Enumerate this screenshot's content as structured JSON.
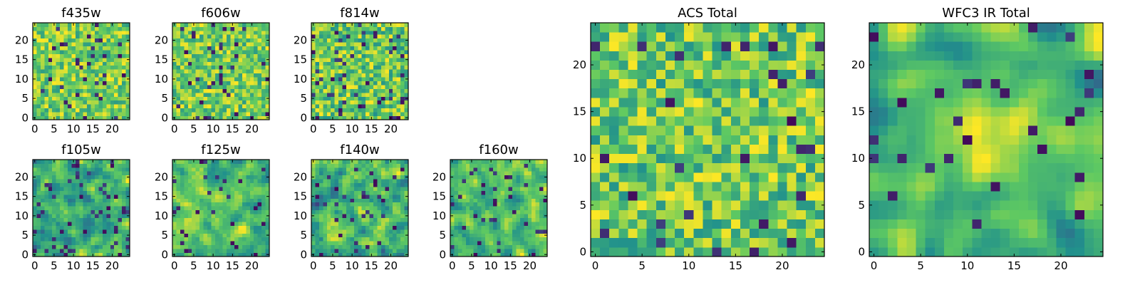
{
  "figure": {
    "background": "#ffffff"
  },
  "colormap": {
    "name": "viridis-upper",
    "stops": [
      "#440154",
      "#3b528b",
      "#21918c",
      "#5ec962",
      "#fde725"
    ]
  },
  "chart_data": [
    {
      "type": "heatmap",
      "title": "f435w",
      "grid": [
        25,
        25
      ],
      "xlim": [
        -0.5,
        24.5
      ],
      "ylim": [
        -0.5,
        24.5
      ],
      "xticks": [
        0,
        5,
        10,
        15,
        20
      ],
      "yticks": [
        0,
        5,
        10,
        15,
        20
      ],
      "xlabel": "",
      "ylabel": "",
      "texture": "noise",
      "seed": 11,
      "value_range": [
        0.55,
        1.0
      ],
      "dark_fraction": 0.05,
      "smoothing": 0
    },
    {
      "type": "heatmap",
      "title": "f606w",
      "grid": [
        25,
        25
      ],
      "xlim": [
        -0.5,
        24.5
      ],
      "ylim": [
        -0.5,
        24.5
      ],
      "xticks": [
        0,
        5,
        10,
        15,
        20
      ],
      "yticks": [
        0,
        5,
        10,
        15,
        20
      ],
      "xlabel": "",
      "ylabel": "",
      "texture": "noise",
      "seed": 23,
      "value_range": [
        0.55,
        1.0
      ],
      "dark_fraction": 0.05,
      "smoothing": 0
    },
    {
      "type": "heatmap",
      "title": "f814w",
      "grid": [
        25,
        25
      ],
      "xlim": [
        -0.5,
        24.5
      ],
      "ylim": [
        -0.5,
        24.5
      ],
      "xticks": [
        0,
        5,
        10,
        15,
        20
      ],
      "yticks": [
        0,
        5,
        10,
        15,
        20
      ],
      "xlabel": "",
      "ylabel": "",
      "texture": "noise",
      "seed": 37,
      "value_range": [
        0.5,
        1.0
      ],
      "dark_fraction": 0.06,
      "smoothing": 0
    },
    {
      "type": "heatmap",
      "title": "f105w",
      "grid": [
        25,
        25
      ],
      "xlim": [
        -0.5,
        24.5
      ],
      "ylim": [
        -0.5,
        24.5
      ],
      "xticks": [
        0,
        5,
        10,
        15,
        20
      ],
      "yticks": [
        0,
        5,
        10,
        15,
        20
      ],
      "xlabel": "",
      "ylabel": "",
      "texture": "smooth",
      "seed": 41,
      "value_range": [
        0.3,
        1.0
      ],
      "dark_fraction": 0.08,
      "smoothing": 1
    },
    {
      "type": "heatmap",
      "title": "f125w",
      "grid": [
        25,
        25
      ],
      "xlim": [
        -0.5,
        24.5
      ],
      "ylim": [
        -0.5,
        24.5
      ],
      "xticks": [
        0,
        5,
        10,
        15,
        20
      ],
      "yticks": [
        0,
        5,
        10,
        15,
        20
      ],
      "xlabel": "",
      "ylabel": "",
      "texture": "smooth",
      "seed": 53,
      "value_range": [
        0.4,
        1.0
      ],
      "dark_fraction": 0.05,
      "smoothing": 1
    },
    {
      "type": "heatmap",
      "title": "f140w",
      "grid": [
        25,
        25
      ],
      "xlim": [
        -0.5,
        24.5
      ],
      "ylim": [
        -0.5,
        24.5
      ],
      "xticks": [
        0,
        5,
        10,
        15,
        20
      ],
      "yticks": [
        0,
        5,
        10,
        15,
        20
      ],
      "xlabel": "",
      "ylabel": "",
      "texture": "smooth",
      "seed": 67,
      "value_range": [
        0.3,
        1.0
      ],
      "dark_fraction": 0.06,
      "smoothing": 1
    },
    {
      "type": "heatmap",
      "title": "f160w",
      "grid": [
        25,
        25
      ],
      "xlim": [
        -0.5,
        24.5
      ],
      "ylim": [
        -0.5,
        24.5
      ],
      "xticks": [
        0,
        5,
        10,
        15,
        20
      ],
      "yticks": [
        0,
        5,
        10,
        15,
        20
      ],
      "xlabel": "",
      "ylabel": "",
      "texture": "smooth",
      "seed": 79,
      "value_range": [
        0.35,
        1.0
      ],
      "dark_fraction": 0.05,
      "smoothing": 1
    },
    {
      "type": "heatmap",
      "title": "ACS Total",
      "grid": [
        25,
        25
      ],
      "xlim": [
        -0.5,
        24.5
      ],
      "ylim": [
        -0.5,
        24.5
      ],
      "xticks": [
        0,
        5,
        10,
        15,
        20
      ],
      "yticks": [
        0,
        5,
        10,
        15,
        20
      ],
      "xlabel": "",
      "ylabel": "",
      "texture": "noise",
      "seed": 97,
      "value_range": [
        0.5,
        1.0
      ],
      "dark_fraction": 0.03,
      "smoothing": 0
    },
    {
      "type": "heatmap",
      "title": "WFC3 IR Total",
      "grid": [
        25,
        25
      ],
      "xlim": [
        -0.5,
        24.5
      ],
      "ylim": [
        -0.5,
        24.5
      ],
      "xticks": [
        0,
        5,
        10,
        15,
        20
      ],
      "yticks": [
        0,
        5,
        10,
        15,
        20
      ],
      "xlabel": "",
      "ylabel": "",
      "texture": "smooth",
      "seed": 113,
      "value_range": [
        0.35,
        1.0
      ],
      "dark_fraction": 0.04,
      "smoothing": 2,
      "bright_center": [
        12,
        12
      ]
    }
  ]
}
